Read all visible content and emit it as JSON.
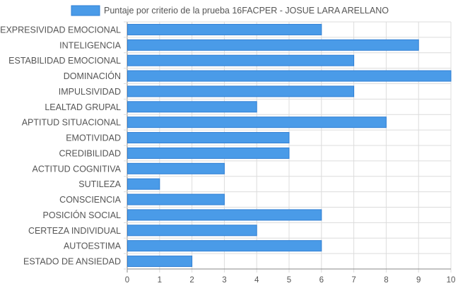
{
  "chart_data": {
    "type": "bar",
    "orientation": "horizontal",
    "legend": {
      "position": "top",
      "items": [
        {
          "label": "Puntaje por criterio de la prueba 16FACPER - JOSUE LARA ARELLANO",
          "color": "#4a9be8"
        }
      ]
    },
    "categories": [
      "EXPRESIVIDAD EMOCIONAL",
      "INTELIGENCIA",
      "ESTABILIDAD EMOCIONAL",
      "DOMINACIÓN",
      "IMPULSIVIDAD",
      "LEALTAD GRUPAL",
      "APTITUD SITUACIONAL",
      "EMOTIVIDAD",
      "CREDIBILIDAD",
      "ACTITUD COGNITIVA",
      "SUTILEZA",
      "CONSCIENCIA",
      "POSICIÓN SOCIAL",
      "CERTEZA INDIVIDUAL",
      "AUTOESTIMA",
      "ESTADO DE ANSIEDAD"
    ],
    "series": [
      {
        "name": "Puntaje por criterio de la prueba 16FACPER - JOSUE LARA ARELLANO",
        "color": "#4a9be8",
        "values": [
          6,
          9,
          7,
          10,
          7,
          4,
          8,
          5,
          5,
          3,
          1,
          3,
          6,
          4,
          6,
          2
        ]
      }
    ],
    "x_ticks": [
      "0",
      "1",
      "2",
      "3",
      "4",
      "5",
      "6",
      "7",
      "8",
      "9",
      "10"
    ],
    "xlim": [
      0,
      10
    ],
    "grid": true,
    "colors": {
      "bar_fill": "#4a9be8",
      "bar_stroke": "#2f7fd4",
      "grid": "#dcdcdc",
      "axis": "#888888",
      "text": "#555555"
    }
  }
}
